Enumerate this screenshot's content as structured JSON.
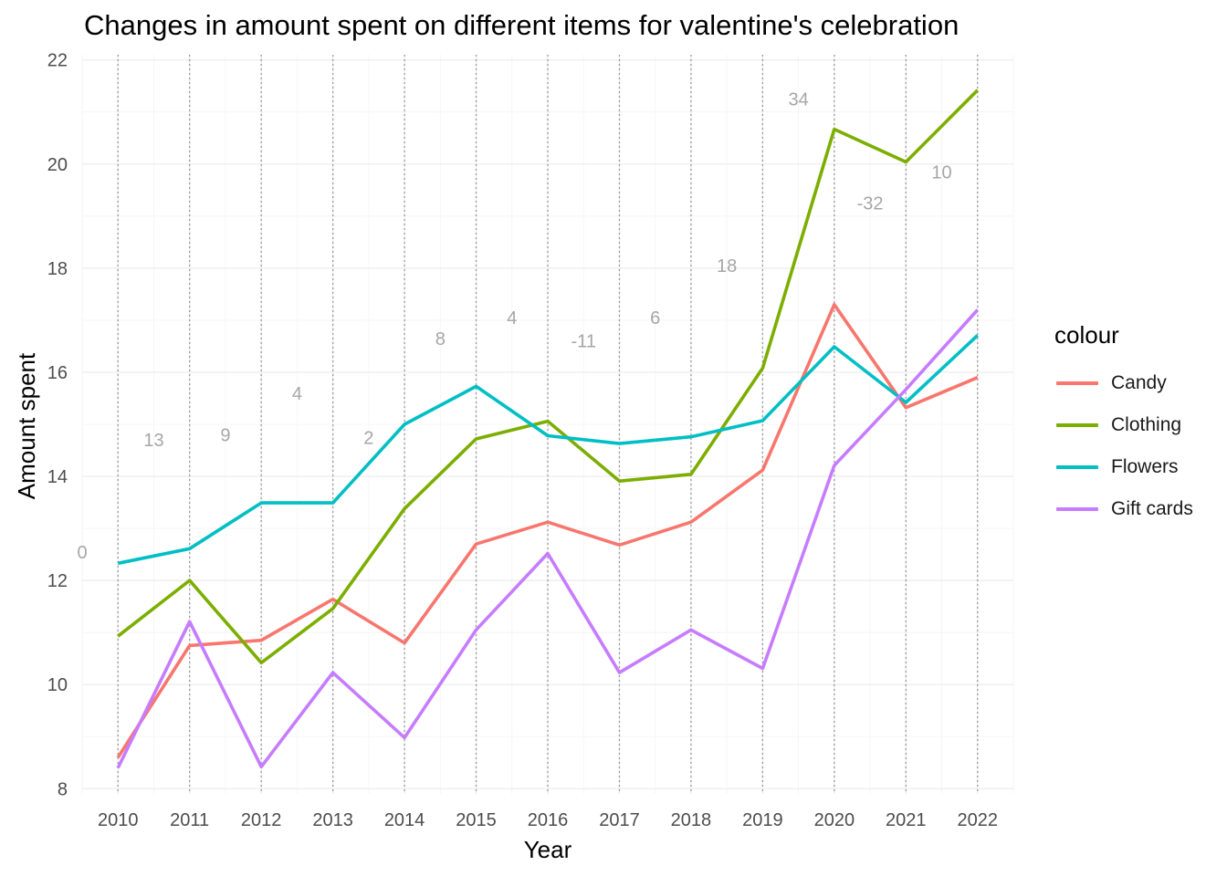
{
  "chart_data": {
    "type": "line",
    "title": "Changes in amount spent on different items for valentine's celebration",
    "xlabel": "Year",
    "ylabel": "Amount spent",
    "x": [
      2010,
      2011,
      2012,
      2013,
      2014,
      2015,
      2016,
      2017,
      2018,
      2019,
      2020,
      2021,
      2022
    ],
    "xlim": [
      2009.5,
      2022.5
    ],
    "ylim": [
      7.9,
      22.1
    ],
    "yticks": [
      8,
      10,
      12,
      14,
      16,
      18,
      20,
      22
    ],
    "grid": true,
    "legend_title": "colour",
    "legend_position": "right",
    "series": [
      {
        "name": "Candy",
        "color": "#F8766D",
        "values": [
          8.6,
          10.75,
          10.85,
          11.64,
          10.8,
          12.7,
          13.12,
          12.68,
          13.12,
          14.12,
          17.3,
          15.32,
          15.9
        ]
      },
      {
        "name": "Clothing",
        "color": "#7CAE00",
        "values": [
          10.93,
          12.0,
          10.42,
          11.46,
          13.38,
          14.72,
          15.06,
          13.91,
          14.04,
          16.08,
          20.67,
          20.04,
          21.42
        ]
      },
      {
        "name": "Flowers",
        "color": "#00BFC4",
        "values": [
          12.33,
          12.61,
          13.49,
          13.49,
          15.0,
          15.73,
          14.78,
          14.63,
          14.76,
          15.07,
          16.49,
          15.42,
          16.71
        ]
      },
      {
        "name": "Gift cards",
        "color": "#C77CFF",
        "values": [
          8.4,
          11.21,
          8.42,
          10.23,
          8.98,
          11.05,
          12.52,
          10.23,
          11.05,
          10.31,
          14.21,
          15.67,
          17.2
        ]
      }
    ],
    "annotations": [
      {
        "label": "0",
        "x": 2009.5,
        "y": 12.55
      },
      {
        "label": "13",
        "x": 2010.5,
        "y": 14.7
      },
      {
        "label": "9",
        "x": 2011.5,
        "y": 14.8
      },
      {
        "label": "4",
        "x": 2012.5,
        "y": 15.6
      },
      {
        "label": "2",
        "x": 2013.5,
        "y": 14.75
      },
      {
        "label": "8",
        "x": 2014.5,
        "y": 16.65
      },
      {
        "label": "4",
        "x": 2015.5,
        "y": 17.05
      },
      {
        "label": "-11",
        "x": 2016.5,
        "y": 16.6
      },
      {
        "label": "6",
        "x": 2017.5,
        "y": 17.05
      },
      {
        "label": "18",
        "x": 2018.5,
        "y": 18.05
      },
      {
        "label": "34",
        "x": 2019.5,
        "y": 21.25
      },
      {
        "label": "-32",
        "x": 2020.5,
        "y": 19.25
      },
      {
        "label": "10",
        "x": 2021.5,
        "y": 19.85
      }
    ]
  }
}
